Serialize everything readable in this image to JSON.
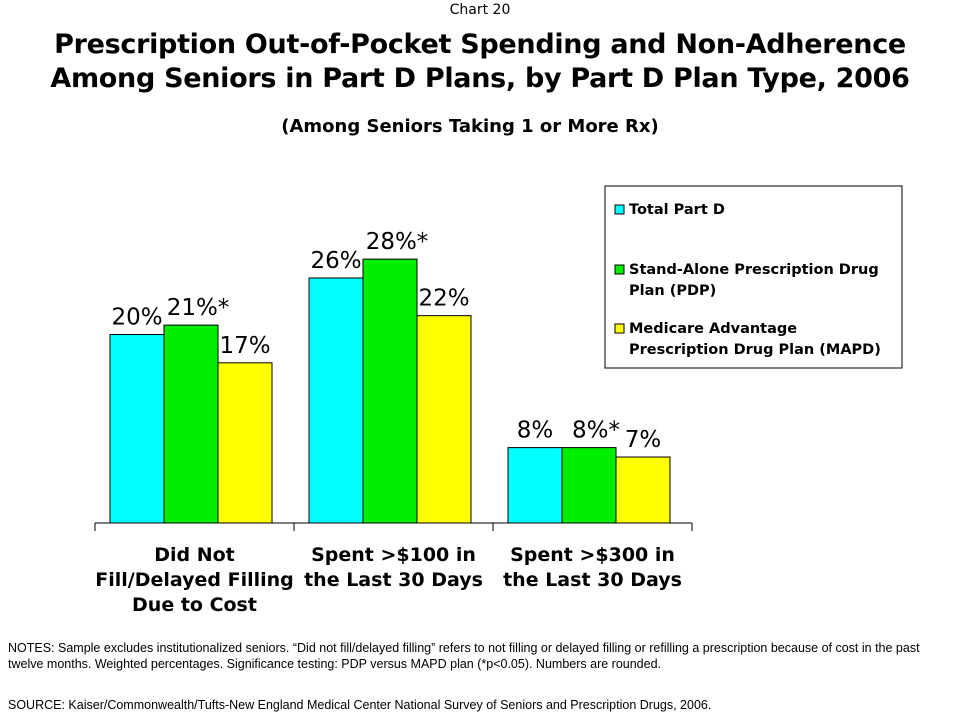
{
  "header": {
    "chart_number": "Chart 20",
    "title_line1": "Prescription Out-of-Pocket Spending and Non-Adherence",
    "title_line2": "Among Seniors in Part D Plans, by Part D Plan Type, 2006",
    "subtitle": "(Among Seniors Taking 1 or More Rx)"
  },
  "chart_data": {
    "type": "bar",
    "categories": [
      [
        "Did Not",
        "Fill/Delayed Filling",
        "Due to Cost"
      ],
      [
        "Spent >$100 in",
        "the Last 30 Days"
      ],
      [
        "Spent >$300 in",
        "the Last 30 Days"
      ]
    ],
    "series": [
      {
        "name": "Total Part D",
        "values": [
          20,
          26,
          8
        ],
        "labels": [
          "20%",
          "26%",
          "8%"
        ],
        "color": "#00ffff"
      },
      {
        "name": "Stand-Alone Prescription Drug Plan (PDP)",
        "values": [
          21,
          28,
          8
        ],
        "labels": [
          "21%*",
          "28%*",
          "8%*"
        ],
        "color": "#00ee00"
      },
      {
        "name": "Medicare Advantage Prescription Drug Plan (MAPD)",
        "values": [
          17,
          22,
          7
        ],
        "labels": [
          "17%",
          "22%",
          "7%"
        ],
        "color": "#ffff00"
      }
    ],
    "legend_lines": [
      [
        "Total Part D"
      ],
      [
        "Stand-Alone Prescription Drug",
        "Plan (PDP)"
      ],
      [
        "Medicare Advantage",
        "Prescription Drug Plan (MAPD)"
      ]
    ],
    "ylim": [
      0,
      33
    ],
    "legend_position": "top-right",
    "grid": false
  },
  "footer": {
    "notes": "NOTES: Sample excludes institutionalized seniors. “Did not fill/delayed filling” refers to not filling or delayed filling or refilling a prescription because of cost in the past twelve months. Weighted percentages. Significance testing: PDP versus MAPD plan (*p<0.05). Numbers are rounded.",
    "source": "SOURCE: Kaiser/Commonwealth/Tufts-New England Medical Center National Survey of Seniors and Prescription Drugs, 2006."
  }
}
